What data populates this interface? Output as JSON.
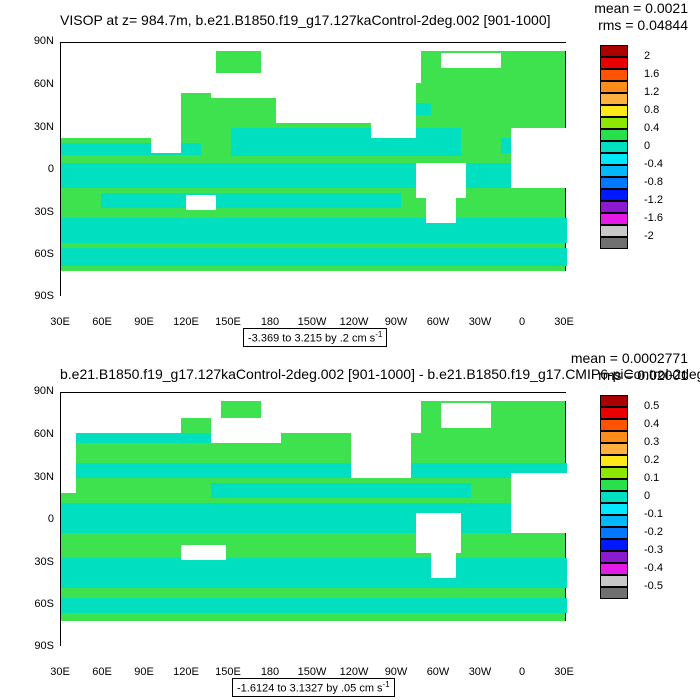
{
  "panels": [
    {
      "title": "VISOP at z= 984.7m, b.e21.B1850.f19_g17.127kaControl-2deg.002 [901-1000]",
      "mean_text": "mean = 0.0021",
      "rms_text": "rms = 0.04844",
      "range_text": "-3.369 to 3.215 by .2 cm s",
      "range_unit_exp": "-1",
      "colorbar_labels": [
        "2",
        "1.6",
        "1.2",
        "0.8",
        "0.4",
        "0",
        "-0.4",
        "-0.8",
        "-1.2",
        "-1.6",
        "-2"
      ]
    },
    {
      "title": "b.e21.B1850.f19_g17.127kaControl-2deg.002 [901-1000] - b.e21.B1850.f19_g17.CMIP6-piControl-2deg.",
      "mean_text": "mean = 0.0002771",
      "rms_text": "rms = 0.02001",
      "range_text": "-1.6124 to 3.1327 by .05 cm s",
      "range_unit_exp": "-1",
      "colorbar_labels": [
        "0.5",
        "0.4",
        "0.3",
        "0.2",
        "0.1",
        "0",
        "-0.1",
        "-0.2",
        "-0.3",
        "-0.4",
        "-0.5"
      ]
    }
  ],
  "axes": {
    "y_ticks": [
      "90N",
      "60N",
      "30N",
      "0",
      "30S",
      "60S",
      "90S"
    ],
    "x_ticks": [
      "30E",
      "60E",
      "90E",
      "120E",
      "150E",
      "180",
      "150W",
      "120W",
      "90W",
      "60W",
      "30W",
      "0",
      "30E"
    ]
  },
  "colorbar_colors": [
    "#aa0000",
    "#e80000",
    "#ff5300",
    "#ff8c1a",
    "#ffb040",
    "#ffe81a",
    "#8ce800",
    "#28e04a",
    "#00e0c0",
    "#00e8ff",
    "#00b8ff",
    "#0078ff",
    "#0018ff",
    "#8c1ad0",
    "#e61ae6",
    "#c8c8c8",
    "#707070"
  ],
  "chart_data": [
    {
      "type": "heatmap",
      "title": "VISOP at z= 984.7m, b.e21.B1850.f19_g17.127kaControl-2deg.002 [901-1000]",
      "x_range": [
        "30E",
        "30E"
      ],
      "y_range": [
        "90S",
        "90N"
      ],
      "levels": [
        -2,
        -1.6,
        -1.2,
        -0.8,
        -0.4,
        0,
        0.4,
        0.8,
        1.2,
        1.6,
        2
      ],
      "mean": 0.0021,
      "rms": 0.04844,
      "data_min": -3.369,
      "data_max": 3.215,
      "contour_interval": 0.2,
      "units": "cm s-1"
    },
    {
      "type": "heatmap",
      "title": "b.e21.B1850.f19_g17.127kaControl-2deg.002 [901-1000] - b.e21.B1850.f19_g17.CMIP6-piControl-2deg.",
      "x_range": [
        "30E",
        "30E"
      ],
      "y_range": [
        "90S",
        "90N"
      ],
      "levels": [
        -0.5,
        -0.4,
        -0.3,
        -0.2,
        -0.1,
        0,
        0.1,
        0.2,
        0.3,
        0.4,
        0.5
      ],
      "mean": 0.0002771,
      "rms": 0.02001,
      "data_min": -1.6124,
      "data_max": 3.1327,
      "contour_interval": 0.05,
      "units": "cm s-1"
    }
  ]
}
